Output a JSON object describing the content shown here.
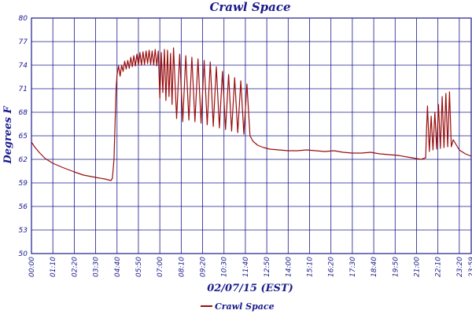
{
  "chart_data": {
    "type": "line",
    "title": "Crawl Space",
    "xlabel": "02/07/15 (EST)",
    "ylabel": "Degrees F",
    "ylim": [
      50,
      80
    ],
    "yticks": [
      "50",
      "53",
      "56",
      "59",
      "62",
      "65",
      "68",
      "71",
      "74",
      "77",
      "80"
    ],
    "xlim_minutes": [
      0,
      1439
    ],
    "xticks": [
      "00:00",
      "01:10",
      "02:20",
      "03:30",
      "04:40",
      "05:50",
      "07:00",
      "08:10",
      "09:20",
      "10:30",
      "11:40",
      "12:50",
      "14:00",
      "15:10",
      "16:20",
      "17:30",
      "18:40",
      "19:50",
      "21:00",
      "22:10",
      "23:20",
      "23:59"
    ],
    "grid": true,
    "legend_position": "bottom-left",
    "series": [
      {
        "name": "Crawl Space",
        "color": "#9b0d0d",
        "points": [
          [
            "00:00",
            64.2
          ],
          [
            "00:10",
            63.6
          ],
          [
            "00:25",
            62.9
          ],
          [
            "00:45",
            62.1
          ],
          [
            "01:10",
            61.5
          ],
          [
            "01:40",
            61.0
          ],
          [
            "02:20",
            60.4
          ],
          [
            "02:50",
            60.0
          ],
          [
            "03:30",
            59.7
          ],
          [
            "04:00",
            59.5
          ],
          [
            "04:20",
            59.3
          ],
          [
            "04:25",
            59.6
          ],
          [
            "04:30",
            62.0
          ],
          [
            "04:34",
            67.0
          ],
          [
            "04:37",
            71.0
          ],
          [
            "04:40",
            72.8
          ],
          [
            "04:45",
            73.9
          ],
          [
            "04:50",
            72.6
          ],
          [
            "04:55",
            74.0
          ],
          [
            "05:00",
            73.2
          ],
          [
            "05:05",
            74.5
          ],
          [
            "05:10",
            73.5
          ],
          [
            "05:15",
            74.6
          ],
          [
            "05:20",
            73.6
          ],
          [
            "05:25",
            75.0
          ],
          [
            "05:30",
            73.8
          ],
          [
            "05:35",
            75.2
          ],
          [
            "05:40",
            73.9
          ],
          [
            "05:45",
            75.4
          ],
          [
            "05:50",
            74.0
          ],
          [
            "05:55",
            75.6
          ],
          [
            "06:00",
            74.0
          ],
          [
            "06:05",
            75.7
          ],
          [
            "06:10",
            74.1
          ],
          [
            "06:15",
            75.8
          ],
          [
            "06:20",
            74.2
          ],
          [
            "06:25",
            75.9
          ],
          [
            "06:30",
            74.1
          ],
          [
            "06:35",
            75.8
          ],
          [
            "06:40",
            74.0
          ],
          [
            "06:45",
            76.0
          ],
          [
            "06:50",
            73.9
          ],
          [
            "06:55",
            75.8
          ],
          [
            "07:00",
            69.8
          ],
          [
            "07:05",
            75.6
          ],
          [
            "07:10",
            70.5
          ],
          [
            "07:15",
            76.0
          ],
          [
            "07:20",
            69.5
          ],
          [
            "07:25",
            75.9
          ],
          [
            "07:30",
            70.0
          ],
          [
            "07:35",
            75.5
          ],
          [
            "07:40",
            69.0
          ],
          [
            "07:45",
            76.2
          ],
          [
            "07:55",
            67.2
          ],
          [
            "08:05",
            75.4
          ],
          [
            "08:15",
            66.8
          ],
          [
            "08:25",
            75.2
          ],
          [
            "08:35",
            67.0
          ],
          [
            "08:45",
            75.0
          ],
          [
            "08:55",
            66.8
          ],
          [
            "09:05",
            74.8
          ],
          [
            "09:15",
            66.6
          ],
          [
            "09:25",
            74.6
          ],
          [
            "09:35",
            66.4
          ],
          [
            "09:45",
            74.4
          ],
          [
            "09:55",
            66.2
          ],
          [
            "10:05",
            73.8
          ],
          [
            "10:15",
            66.0
          ],
          [
            "10:25",
            73.2
          ],
          [
            "10:35",
            65.8
          ],
          [
            "10:45",
            72.8
          ],
          [
            "10:55",
            65.6
          ],
          [
            "11:05",
            72.4
          ],
          [
            "11:15",
            65.4
          ],
          [
            "11:25",
            72.0
          ],
          [
            "11:35",
            65.2
          ],
          [
            "11:45",
            71.6
          ],
          [
            "11:55",
            65.0
          ],
          [
            "12:05",
            64.3
          ],
          [
            "12:20",
            63.8
          ],
          [
            "12:40",
            63.5
          ],
          [
            "13:00",
            63.3
          ],
          [
            "13:30",
            63.2
          ],
          [
            "14:00",
            63.1
          ],
          [
            "14:30",
            63.1
          ],
          [
            "15:00",
            63.2
          ],
          [
            "15:30",
            63.1
          ],
          [
            "16:00",
            63.0
          ],
          [
            "16:30",
            63.1
          ],
          [
            "17:00",
            62.9
          ],
          [
            "17:30",
            62.8
          ],
          [
            "18:00",
            62.8
          ],
          [
            "18:30",
            62.9
          ],
          [
            "19:00",
            62.7
          ],
          [
            "19:30",
            62.6
          ],
          [
            "20:00",
            62.5
          ],
          [
            "20:30",
            62.3
          ],
          [
            "21:00",
            62.1
          ],
          [
            "21:15",
            62.0
          ],
          [
            "21:30",
            62.2
          ],
          [
            "21:33",
            66.0
          ],
          [
            "21:36",
            68.8
          ],
          [
            "21:42",
            63.0
          ],
          [
            "21:48",
            67.5
          ],
          [
            "21:54",
            63.2
          ],
          [
            "22:00",
            68.0
          ],
          [
            "22:06",
            63.3
          ],
          [
            "22:12",
            69.0
          ],
          [
            "22:18",
            63.4
          ],
          [
            "22:24",
            70.0
          ],
          [
            "22:30",
            63.5
          ],
          [
            "22:36",
            70.4
          ],
          [
            "22:42",
            63.6
          ],
          [
            "22:48",
            70.6
          ],
          [
            "22:54",
            63.6
          ],
          [
            "23:00",
            64.5
          ],
          [
            "23:20",
            63.2
          ],
          [
            "23:40",
            62.7
          ],
          [
            "23:59",
            62.4
          ]
        ]
      }
    ]
  }
}
